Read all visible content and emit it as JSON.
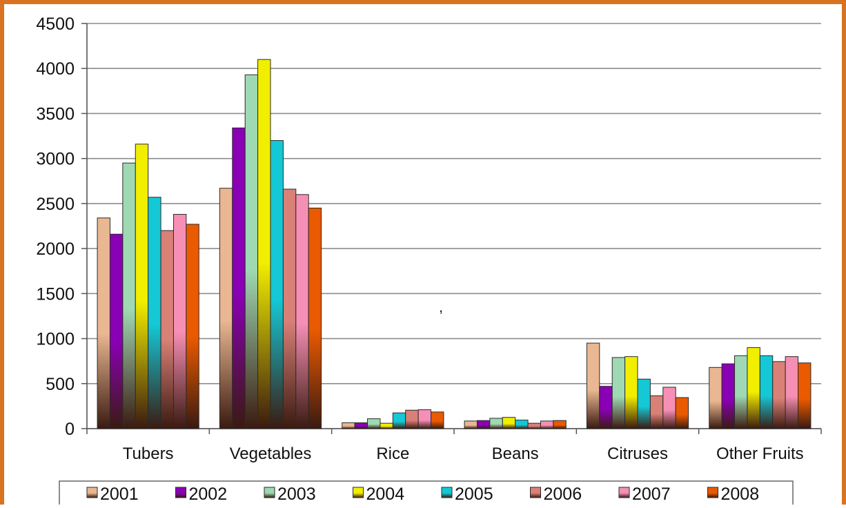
{
  "chart_data": {
    "type": "bar",
    "categories": [
      "Tubers",
      "Vegetables",
      "Rice",
      "Beans",
      "Citruses",
      "Other Fruits"
    ],
    "series": [
      {
        "name": "2001",
        "color": "#e9b791",
        "values": [
          2340,
          2670,
          65,
          85,
          950,
          680
        ]
      },
      {
        "name": "2002",
        "color": "#8a00b4",
        "values": [
          2160,
          3340,
          65,
          90,
          470,
          720
        ]
      },
      {
        "name": "2003",
        "color": "#9fd9b3",
        "values": [
          2950,
          3930,
          110,
          115,
          790,
          810
        ]
      },
      {
        "name": "2004",
        "color": "#f2ee00",
        "values": [
          3160,
          4100,
          60,
          125,
          800,
          900
        ]
      },
      {
        "name": "2005",
        "color": "#14c8d6",
        "values": [
          2570,
          3200,
          175,
          95,
          550,
          810
        ]
      },
      {
        "name": "2006",
        "color": "#d98077",
        "values": [
          2200,
          2660,
          205,
          60,
          365,
          745
        ]
      },
      {
        "name": "2007",
        "color": "#f68fb5",
        "values": [
          2380,
          2600,
          210,
          85,
          460,
          800
        ]
      },
      {
        "name": "2008",
        "color": "#ea5a00",
        "values": [
          2270,
          2450,
          185,
          90,
          345,
          730
        ]
      }
    ],
    "ylim": [
      0,
      4500
    ],
    "yticks": [
      0,
      500,
      1000,
      1500,
      2000,
      2500,
      3000,
      3500,
      4000,
      4500
    ],
    "grid": true,
    "legend": "bottom",
    "annotations": [
      ","
    ],
    "frame_color": "#d9731f"
  }
}
